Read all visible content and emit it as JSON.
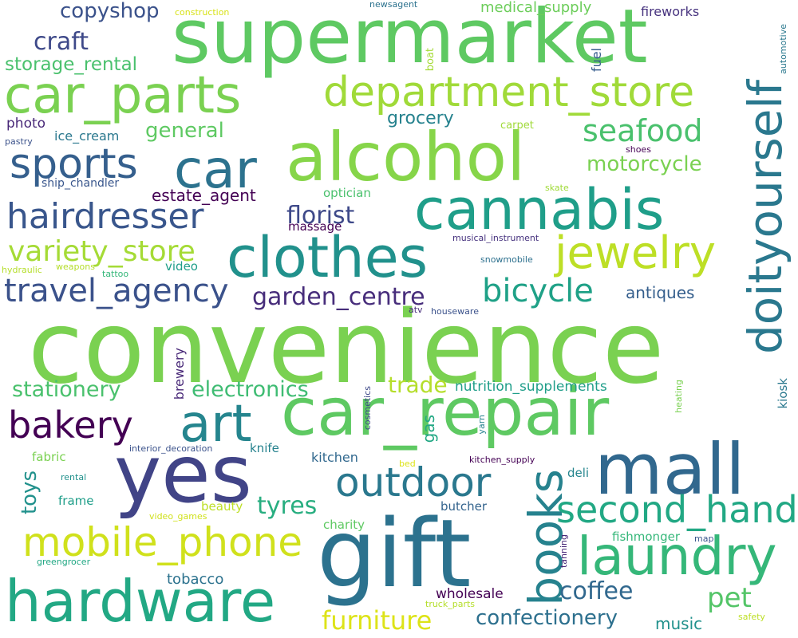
{
  "words": [
    {
      "text": "convenience",
      "color": "#7ad151"
    },
    {
      "text": "supermarket",
      "color": "#5ec962"
    },
    {
      "text": "gift",
      "color": "#2c728e"
    },
    {
      "text": "yes",
      "color": "#414487"
    },
    {
      "text": "car_repair",
      "color": "#5ec962"
    },
    {
      "text": "alcohol",
      "color": "#86d549"
    },
    {
      "text": "cannabis",
      "color": "#1f9e89"
    },
    {
      "text": "clothes",
      "color": "#21918c"
    },
    {
      "text": "hardware",
      "color": "#22a884"
    },
    {
      "text": "mall",
      "color": "#31688e"
    },
    {
      "text": "car_parts",
      "color": "#7ad151"
    },
    {
      "text": "doityourself",
      "color": "#2a788e"
    },
    {
      "text": "department_store",
      "color": "#a0da39"
    },
    {
      "text": "car",
      "color": "#2c728e"
    },
    {
      "text": "laundry",
      "color": "#35b779"
    },
    {
      "text": "books",
      "color": "#26828e"
    },
    {
      "text": "mobile_phone",
      "color": "#d0e11c"
    },
    {
      "text": "art",
      "color": "#25858e"
    },
    {
      "text": "jewelry",
      "color": "#bddf26"
    },
    {
      "text": "second_hand",
      "color": "#22a884"
    },
    {
      "text": "outdoor",
      "color": "#2a788e"
    },
    {
      "text": "sports",
      "color": "#355f8d"
    },
    {
      "text": "hairdresser",
      "color": "#39568c"
    },
    {
      "text": "bakery",
      "color": "#440154"
    },
    {
      "text": "bicycle",
      "color": "#1fa187"
    },
    {
      "text": "travel_agency",
      "color": "#3b528b"
    },
    {
      "text": "variety_store",
      "color": "#a5db36"
    },
    {
      "text": "seafood",
      "color": "#4ac16d"
    },
    {
      "text": "pet",
      "color": "#54c568"
    },
    {
      "text": "furniture",
      "color": "#dde318"
    },
    {
      "text": "coffee",
      "color": "#31688e"
    },
    {
      "text": "tyres",
      "color": "#28ae80"
    },
    {
      "text": "confectionery",
      "color": "#2d708e"
    },
    {
      "text": "craft",
      "color": "#3e4989"
    },
    {
      "text": "copyshop",
      "color": "#3b528b"
    },
    {
      "text": "garden_centre",
      "color": "#472d7b"
    },
    {
      "text": "florist",
      "color": "#3e4989"
    },
    {
      "text": "stationery",
      "color": "#4ac16d"
    },
    {
      "text": "electronics",
      "color": "#3fbc73"
    },
    {
      "text": "trade",
      "color": "#b5de2b"
    },
    {
      "text": "motorcycle",
      "color": "#7ad151"
    },
    {
      "text": "general",
      "color": "#5ec962"
    },
    {
      "text": "storage_rental",
      "color": "#4ac16d"
    },
    {
      "text": "grocery",
      "color": "#26828e"
    },
    {
      "text": "estate_agent",
      "color": "#440154"
    },
    {
      "text": "antiques",
      "color": "#355f8d"
    },
    {
      "text": "toys",
      "color": "#21918c"
    },
    {
      "text": "medical_supply",
      "color": "#6ccd5a"
    },
    {
      "text": "fireworks",
      "color": "#46327e"
    },
    {
      "text": "photo",
      "color": "#482878"
    },
    {
      "text": "ice_cream",
      "color": "#2a788e"
    },
    {
      "text": "nutrition_supplements",
      "color": "#1f9e89"
    },
    {
      "text": "wholesale",
      "color": "#440154"
    },
    {
      "text": "tobacco",
      "color": "#2c728e"
    },
    {
      "text": "music",
      "color": "#21918c"
    },
    {
      "text": "gas",
      "color": "#22a884"
    },
    {
      "text": "kitchen",
      "color": "#31688e"
    },
    {
      "text": "brewery",
      "color": "#482878"
    },
    {
      "text": "fuel",
      "color": "#365c8d"
    },
    {
      "text": "massage",
      "color": "#440154"
    },
    {
      "text": "optician",
      "color": "#4ac16d"
    },
    {
      "text": "video",
      "color": "#1f9e89"
    },
    {
      "text": "beauty",
      "color": "#bddf26"
    },
    {
      "text": "knife",
      "color": "#26828e"
    },
    {
      "text": "fabric",
      "color": "#7ad151"
    },
    {
      "text": "frame",
      "color": "#1f9e89"
    },
    {
      "text": "butcher",
      "color": "#33638d"
    },
    {
      "text": "deli",
      "color": "#25858e"
    },
    {
      "text": "charity",
      "color": "#5ec962"
    },
    {
      "text": "fishmonger",
      "color": "#35b779"
    },
    {
      "text": "kiosk",
      "color": "#2a788e"
    },
    {
      "text": "ship_chandler",
      "color": "#39568c"
    },
    {
      "text": "carpet",
      "color": "#a0da39"
    },
    {
      "text": "boat",
      "color": "#a5db36"
    },
    {
      "text": "construction",
      "color": "#d8e219"
    },
    {
      "text": "newsagent",
      "color": "#2c728e"
    },
    {
      "text": "automotive",
      "color": "#2a788e"
    },
    {
      "text": "pastry",
      "color": "#3b528b"
    },
    {
      "text": "shoes",
      "color": "#440154"
    },
    {
      "text": "skate",
      "color": "#a0da39"
    },
    {
      "text": "musical_instrument",
      "color": "#46327e"
    },
    {
      "text": "snowmobile",
      "color": "#2d708e"
    },
    {
      "text": "hydraulic",
      "color": "#b5de2b"
    },
    {
      "text": "weapons",
      "color": "#b5de2b"
    },
    {
      "text": "tattoo",
      "color": "#35b779"
    },
    {
      "text": "atv",
      "color": "#472d7b"
    },
    {
      "text": "houseware",
      "color": "#3b528b"
    },
    {
      "text": "cosmetics",
      "color": "#3e4989"
    },
    {
      "text": "yarn",
      "color": "#26828e"
    },
    {
      "text": "heating",
      "color": "#7ad151"
    },
    {
      "text": "interior_decoration",
      "color": "#3b528b"
    },
    {
      "text": "kitchen_supply",
      "color": "#440154"
    },
    {
      "text": "bed",
      "color": "#dde318"
    },
    {
      "text": "rental",
      "color": "#21918c"
    },
    {
      "text": "video_games",
      "color": "#d0e11c"
    },
    {
      "text": "greengrocer",
      "color": "#22a884"
    },
    {
      "text": "tanning",
      "color": "#482878"
    },
    {
      "text": "map",
      "color": "#39568c"
    },
    {
      "text": "truck_parts",
      "color": "#b5de2b"
    },
    {
      "text": "safety",
      "color": "#bddf26"
    }
  ]
}
